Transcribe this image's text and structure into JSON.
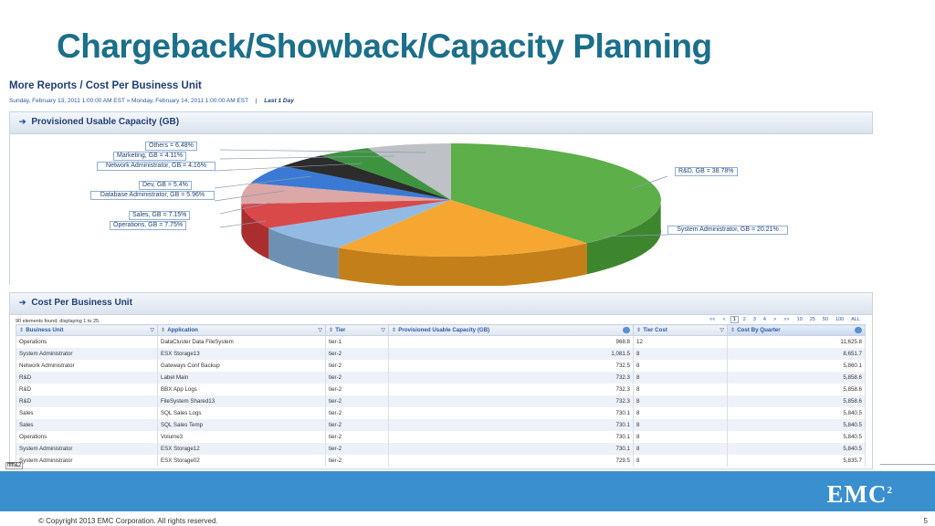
{
  "slide": {
    "title": "Chargeback/Showback/Capacity Planning",
    "copyright": "© Copyright 2013 EMC Corporation. All rights reserved.",
    "page_number": "5",
    "logo_text": "EMC",
    "logo_sup": "2",
    "corner_tag": "fffff&2"
  },
  "report": {
    "breadcrumb": "More Reports / Cost Per Business Unit",
    "date_range": "Sunday, February 13, 2011 1:00:00 AM EST » Monday, February 14, 2011 1:00:00 AM EST",
    "separator": "|",
    "period": "Last 1 Day"
  },
  "capacity_panel": {
    "title": "Provisioned Usable Capacity (GB)",
    "arrow": "➔"
  },
  "chart_data": {
    "type": "pie",
    "title": "Provisioned Usable Capacity (GB)",
    "slices": [
      {
        "label": "R&D, GB = 38.78%",
        "value": 38.78,
        "color": "#4ea83a"
      },
      {
        "label": "System Administrator, GB = 20.21%",
        "value": 20.21,
        "color": "#f4a020"
      },
      {
        "label": "Operations, GB = 7.75%",
        "value": 7.75,
        "color": "#8ab4e0"
      },
      {
        "label": "Sales, GB = 7.15%",
        "value": 7.15,
        "color": "#d63a3a"
      },
      {
        "label": "Database Administrator, GB = 5.96%",
        "value": 5.96,
        "color": "#d9a0a0"
      },
      {
        "label": "Dev, GB = 5.4%",
        "value": 5.4,
        "color": "#2a6fd0"
      },
      {
        "label": "Network Administrator, GB = 4.16%",
        "value": 4.16,
        "color": "#1a1a1a"
      },
      {
        "label": "Marketing, GB = 4.11%",
        "value": 4.11,
        "color": "#2e8b2e"
      },
      {
        "label": "Others = 6.48%",
        "value": 6.48,
        "color": "#b8bcc0"
      }
    ]
  },
  "cost_panel": {
    "title": "Cost Per Business Unit",
    "arrow": "➔",
    "found_text": "90 elements found, displaying 1 to 25.",
    "pager": [
      "<<",
      "<",
      "1",
      "2",
      "3",
      "4",
      ">",
      ">>",
      "10",
      "25",
      "50",
      "100",
      "ALL"
    ],
    "pager_current": "1",
    "columns": [
      "Business Unit",
      "Application",
      "Tier",
      "Provisioned Usable Capacity (GB)",
      "Tier Cost",
      "Cost By Quarter"
    ],
    "sort_glyph": "⇕",
    "filter_glyph": "▽",
    "rows": [
      [
        "Operations",
        "DataCluster Data FileSystem",
        "tier-1",
        "968.8",
        "12",
        "11,625.8"
      ],
      [
        "System Administrator",
        "ESX Storage13",
        "tier-2",
        "1,081.5",
        "8",
        "8,651.7"
      ],
      [
        "Network Administrator",
        "Gateways Conf Backup",
        "tier-2",
        "732.5",
        "8",
        "5,860.1"
      ],
      [
        "R&D",
        "Label Main",
        "tier-2",
        "732.3",
        "8",
        "5,858.6"
      ],
      [
        "R&D",
        "BBX App Logs",
        "tier-2",
        "732.3",
        "8",
        "5,858.6"
      ],
      [
        "R&D",
        "FileSystem Shared13",
        "tier-2",
        "732.3",
        "8",
        "5,858.6"
      ],
      [
        "Sales",
        "SQL Sales Logs",
        "tier-2",
        "730.1",
        "8",
        "5,840.5"
      ],
      [
        "Sales",
        "SQL Sales Temp",
        "tier-2",
        "730.1",
        "8",
        "5,840.5"
      ],
      [
        "Operations",
        "Volume3",
        "tier-2",
        "730.1",
        "8",
        "5,840.5"
      ],
      [
        "System Administrator",
        "ESX Storage12",
        "tier-2",
        "730.1",
        "8",
        "5,840.5"
      ],
      [
        "System Administrator",
        "ESX Storage02",
        "tier-2",
        "729.5",
        "8",
        "5,835.7"
      ]
    ]
  }
}
